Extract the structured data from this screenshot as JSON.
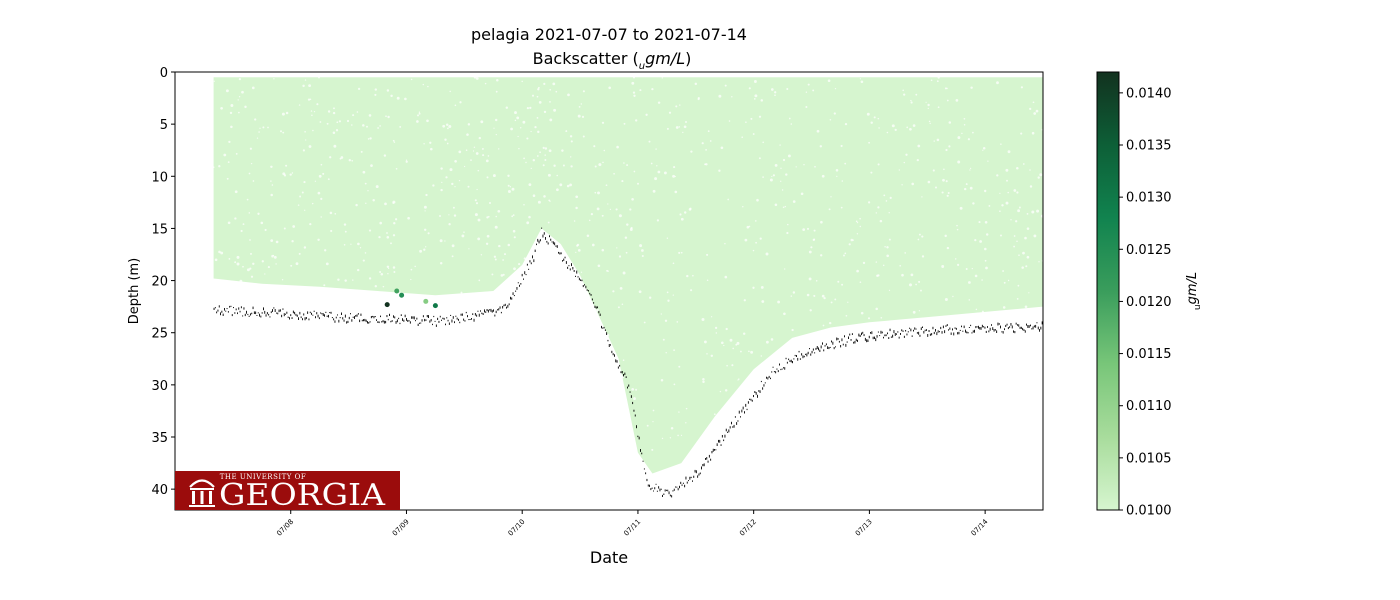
{
  "chart_data": {
    "type": "scatter",
    "title": "pelagia 2021-07-07 to 2021-07-14",
    "subtitle_prefix": "Backscatter (",
    "subtitle_unit_sub": "u",
    "subtitle_unit": "gm/L",
    "subtitle_suffix": ")",
    "xlabel": "Date",
    "ylabel": "Depth (m)",
    "x_axis": {
      "type": "date",
      "range": [
        "2021-07-07T00:00",
        "2021-07-14T12:00"
      ],
      "tick_labels": [
        "07/08",
        "07/09",
        "07/10",
        "07/11",
        "07/12",
        "07/13",
        "07/14"
      ],
      "tick_dates": [
        "2021-07-08",
        "2021-07-09",
        "2021-07-10",
        "2021-07-11",
        "2021-07-12",
        "2021-07-13",
        "2021-07-14"
      ]
    },
    "y_axis": {
      "inverted": true,
      "range": [
        0,
        42
      ],
      "ticks": [
        0,
        5,
        10,
        15,
        20,
        25,
        30,
        35,
        40
      ]
    },
    "colorbar": {
      "label_sub": "u",
      "label_unit": "gm/L",
      "range": [
        0.01,
        0.0142
      ],
      "ticks": [
        "0.0100",
        "0.0105",
        "0.0110",
        "0.0115",
        "0.0120",
        "0.0125",
        "0.0130",
        "0.0135",
        "0.0140"
      ],
      "tick_values": [
        0.01,
        0.0105,
        0.011,
        0.0115,
        0.012,
        0.0125,
        0.013,
        0.0135,
        0.014
      ],
      "colors": [
        "#d6f5cf",
        "#a8dc9c",
        "#78c679",
        "#3a9d5c",
        "#11834f",
        "#0d5f37",
        "#12321f"
      ]
    },
    "fill_color": "#d6f5cf",
    "series": [
      {
        "kind": "sample_envelope",
        "value": 0.01,
        "top_depth_shallow_edge": 0.5,
        "bottom_depth": [
          {
            "x": "2021-07-07T08:00",
            "y": 19.8
          },
          {
            "x": "2021-07-07T18:00",
            "y": 20.3
          },
          {
            "x": "2021-07-08T06:00",
            "y": 20.6
          },
          {
            "x": "2021-07-08T18:00",
            "y": 21.0
          },
          {
            "x": "2021-07-09T06:00",
            "y": 21.4
          },
          {
            "x": "2021-07-09T18:00",
            "y": 21.0
          },
          {
            "x": "2021-07-10T00:00",
            "y": 18.5
          },
          {
            "x": "2021-07-10T04:00",
            "y": 15.0
          },
          {
            "x": "2021-07-10T08:00",
            "y": 16.5
          },
          {
            "x": "2021-07-10T12:00",
            "y": 19.5
          },
          {
            "x": "2021-07-10T16:00",
            "y": 23.5
          },
          {
            "x": "2021-07-10T20:00",
            "y": 27.5
          },
          {
            "x": "2021-07-11T00:00",
            "y": 36.5
          },
          {
            "x": "2021-07-11T03:00",
            "y": 38.5
          },
          {
            "x": "2021-07-11T09:00",
            "y": 37.5
          },
          {
            "x": "2021-07-11T16:00",
            "y": 33.0
          },
          {
            "x": "2021-07-12T00:00",
            "y": 28.5
          },
          {
            "x": "2021-07-12T08:00",
            "y": 25.5
          },
          {
            "x": "2021-07-12T16:00",
            "y": 24.5
          },
          {
            "x": "2021-07-13T00:00",
            "y": 24.0
          },
          {
            "x": "2021-07-13T12:00",
            "y": 23.5
          },
          {
            "x": "2021-07-14T00:00",
            "y": 23.0
          },
          {
            "x": "2021-07-14T12:00",
            "y": 22.5
          }
        ]
      },
      {
        "kind": "sea_floor",
        "color": "#000000",
        "depth": [
          {
            "x": "2021-07-07T08:00",
            "y": 22.8
          },
          {
            "x": "2021-07-07T20:00",
            "y": 23.0
          },
          {
            "x": "2021-07-08T08:00",
            "y": 23.4
          },
          {
            "x": "2021-07-08T20:00",
            "y": 23.6
          },
          {
            "x": "2021-07-09T08:00",
            "y": 23.8
          },
          {
            "x": "2021-07-09T20:00",
            "y": 22.8
          },
          {
            "x": "2021-07-10T02:00",
            "y": 18.0
          },
          {
            "x": "2021-07-10T04:00",
            "y": 15.2
          },
          {
            "x": "2021-07-10T08:00",
            "y": 17.5
          },
          {
            "x": "2021-07-10T14:00",
            "y": 21.0
          },
          {
            "x": "2021-07-10T18:00",
            "y": 26.0
          },
          {
            "x": "2021-07-10T22:00",
            "y": 30.0
          },
          {
            "x": "2021-07-11T02:00",
            "y": 39.5
          },
          {
            "x": "2021-07-11T06:00",
            "y": 40.5
          },
          {
            "x": "2021-07-11T12:00",
            "y": 38.5
          },
          {
            "x": "2021-07-11T20:00",
            "y": 33.5
          },
          {
            "x": "2021-07-12T04:00",
            "y": 28.5
          },
          {
            "x": "2021-07-12T12:00",
            "y": 26.5
          },
          {
            "x": "2021-07-12T20:00",
            "y": 25.5
          },
          {
            "x": "2021-07-13T04:00",
            "y": 25.0
          },
          {
            "x": "2021-07-13T16:00",
            "y": 24.6
          },
          {
            "x": "2021-07-14T12:00",
            "y": 24.3
          }
        ]
      },
      {
        "kind": "high_values",
        "points": [
          {
            "x": "2021-07-08T20:00",
            "y": 22.3,
            "v": 0.0142
          },
          {
            "x": "2021-07-08T22:00",
            "y": 21.0,
            "v": 0.012
          },
          {
            "x": "2021-07-08T23:00",
            "y": 21.4,
            "v": 0.0125
          },
          {
            "x": "2021-07-09T04:00",
            "y": 22.0,
            "v": 0.0112
          },
          {
            "x": "2021-07-09T06:00",
            "y": 22.4,
            "v": 0.013
          }
        ]
      }
    ]
  },
  "logo": {
    "top_line": "THE UNIVERSITY OF",
    "wordmark": "GEORGIA",
    "background": "#9b0c0c",
    "text_color": "#ffffff"
  }
}
